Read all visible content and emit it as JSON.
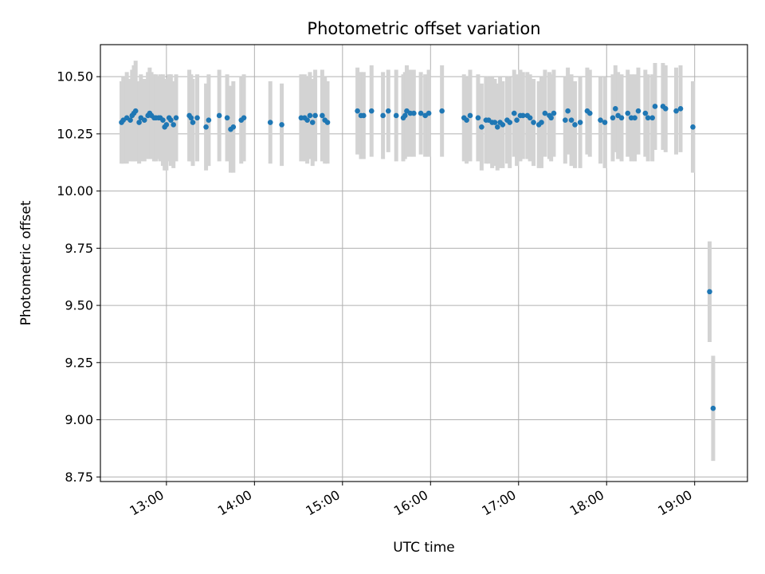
{
  "chart_data": {
    "type": "scatter",
    "title": "Photometric offset variation",
    "xlabel": "UTC time",
    "ylabel": "Photometric offset",
    "x_unit": "hours UTC",
    "xlim": [
      12.25,
      19.6
    ],
    "ylim": [
      8.73,
      10.64
    ],
    "xticks": [
      13,
      14,
      15,
      16,
      17,
      18,
      19
    ],
    "xtick_labels": [
      "13:00",
      "14:00",
      "15:00",
      "16:00",
      "17:00",
      "18:00",
      "19:00"
    ],
    "yticks": [
      8.75,
      9.0,
      9.25,
      9.5,
      9.75,
      10.0,
      10.25,
      10.5
    ],
    "ytick_labels": [
      "8.75",
      "9.00",
      "9.25",
      "9.50",
      "9.75",
      "10.00",
      "10.25",
      "10.50"
    ],
    "grid": true,
    "point_color": "#1f77b4",
    "errorbar_color": "#d3d3d3",
    "series": [
      {
        "x": [
          12.49,
          12.51,
          12.55,
          12.59,
          12.61,
          12.63,
          12.65,
          12.69,
          12.71,
          12.75,
          12.79,
          12.81,
          12.83,
          12.86,
          12.88,
          12.91,
          12.93,
          12.96,
          12.98,
          13.0,
          13.03,
          13.05,
          13.08,
          13.11,
          13.26,
          13.28,
          13.3,
          13.35,
          13.45,
          13.48,
          13.6,
          13.69,
          13.73,
          13.76,
          13.85,
          13.88,
          14.18,
          14.31,
          14.53,
          14.57,
          14.6,
          14.63,
          14.66,
          14.69,
          14.77,
          14.8,
          14.83,
          15.17,
          15.21,
          15.24,
          15.33,
          15.46,
          15.52,
          15.61,
          15.69,
          15.71,
          15.73,
          15.77,
          15.81,
          15.89,
          15.94,
          15.98,
          16.13,
          16.38,
          16.41,
          16.45,
          16.54,
          16.58,
          16.63,
          16.66,
          16.7,
          16.73,
          16.76,
          16.79,
          16.82,
          16.87,
          16.9,
          16.95,
          16.98,
          17.02,
          17.05,
          17.1,
          17.13,
          17.17,
          17.23,
          17.26,
          17.3,
          17.35,
          17.37,
          17.4,
          17.53,
          17.56,
          17.6,
          17.64,
          17.7,
          17.78,
          17.81,
          17.93,
          17.98,
          18.07,
          18.1,
          18.13,
          18.17,
          18.24,
          18.28,
          18.32,
          18.36,
          18.44,
          18.47,
          18.52,
          18.55,
          18.64,
          18.67,
          18.79,
          18.84,
          18.98,
          19.17,
          19.21
        ],
        "y": [
          10.3,
          10.31,
          10.32,
          10.31,
          10.33,
          10.34,
          10.35,
          10.3,
          10.32,
          10.31,
          10.33,
          10.34,
          10.33,
          10.32,
          10.32,
          10.32,
          10.32,
          10.31,
          10.28,
          10.29,
          10.32,
          10.31,
          10.29,
          10.32,
          10.33,
          10.32,
          10.3,
          10.32,
          10.28,
          10.31,
          10.33,
          10.32,
          10.27,
          10.28,
          10.31,
          10.32,
          10.3,
          10.29,
          10.32,
          10.32,
          10.31,
          10.33,
          10.3,
          10.33,
          10.33,
          10.31,
          10.3,
          10.35,
          10.33,
          10.33,
          10.35,
          10.33,
          10.35,
          10.33,
          10.32,
          10.33,
          10.35,
          10.34,
          10.34,
          10.34,
          10.33,
          10.34,
          10.35,
          10.32,
          10.31,
          10.33,
          10.32,
          10.28,
          10.31,
          10.31,
          10.3,
          10.3,
          10.28,
          10.3,
          10.29,
          10.31,
          10.3,
          10.34,
          10.31,
          10.33,
          10.33,
          10.33,
          10.32,
          10.3,
          10.29,
          10.3,
          10.34,
          10.33,
          10.32,
          10.34,
          10.31,
          10.35,
          10.31,
          10.29,
          10.3,
          10.35,
          10.34,
          10.31,
          10.3,
          10.32,
          10.36,
          10.33,
          10.32,
          10.34,
          10.32,
          10.32,
          10.35,
          10.34,
          10.32,
          10.32,
          10.37,
          10.37,
          10.36,
          10.35,
          10.36,
          10.28,
          9.56,
          9.05
        ],
        "err": [
          0.18,
          0.19,
          0.2,
          0.18,
          0.2,
          0.21,
          0.22,
          0.18,
          0.19,
          0.18,
          0.19,
          0.2,
          0.19,
          0.19,
          0.19,
          0.18,
          0.19,
          0.2,
          0.19,
          0.2,
          0.19,
          0.2,
          0.19,
          0.19,
          0.2,
          0.19,
          0.19,
          0.19,
          0.19,
          0.2,
          0.2,
          0.19,
          0.19,
          0.2,
          0.19,
          0.19,
          0.18,
          0.18,
          0.19,
          0.19,
          0.19,
          0.19,
          0.19,
          0.2,
          0.2,
          0.19,
          0.18,
          0.19,
          0.19,
          0.19,
          0.2,
          0.19,
          0.18,
          0.2,
          0.19,
          0.19,
          0.2,
          0.19,
          0.19,
          0.18,
          0.18,
          0.19,
          0.2,
          0.19,
          0.19,
          0.2,
          0.19,
          0.19,
          0.19,
          0.19,
          0.2,
          0.19,
          0.19,
          0.2,
          0.19,
          0.19,
          0.2,
          0.19,
          0.2,
          0.2,
          0.19,
          0.19,
          0.19,
          0.19,
          0.19,
          0.2,
          0.19,
          0.19,
          0.19,
          0.19,
          0.19,
          0.19,
          0.2,
          0.19,
          0.2,
          0.19,
          0.19,
          0.19,
          0.2,
          0.19,
          0.19,
          0.19,
          0.19,
          0.19,
          0.19,
          0.19,
          0.19,
          0.19,
          0.19,
          0.19,
          0.19,
          0.19,
          0.19,
          0.19,
          0.19,
          0.2,
          0.22,
          0.23
        ]
      }
    ]
  }
}
